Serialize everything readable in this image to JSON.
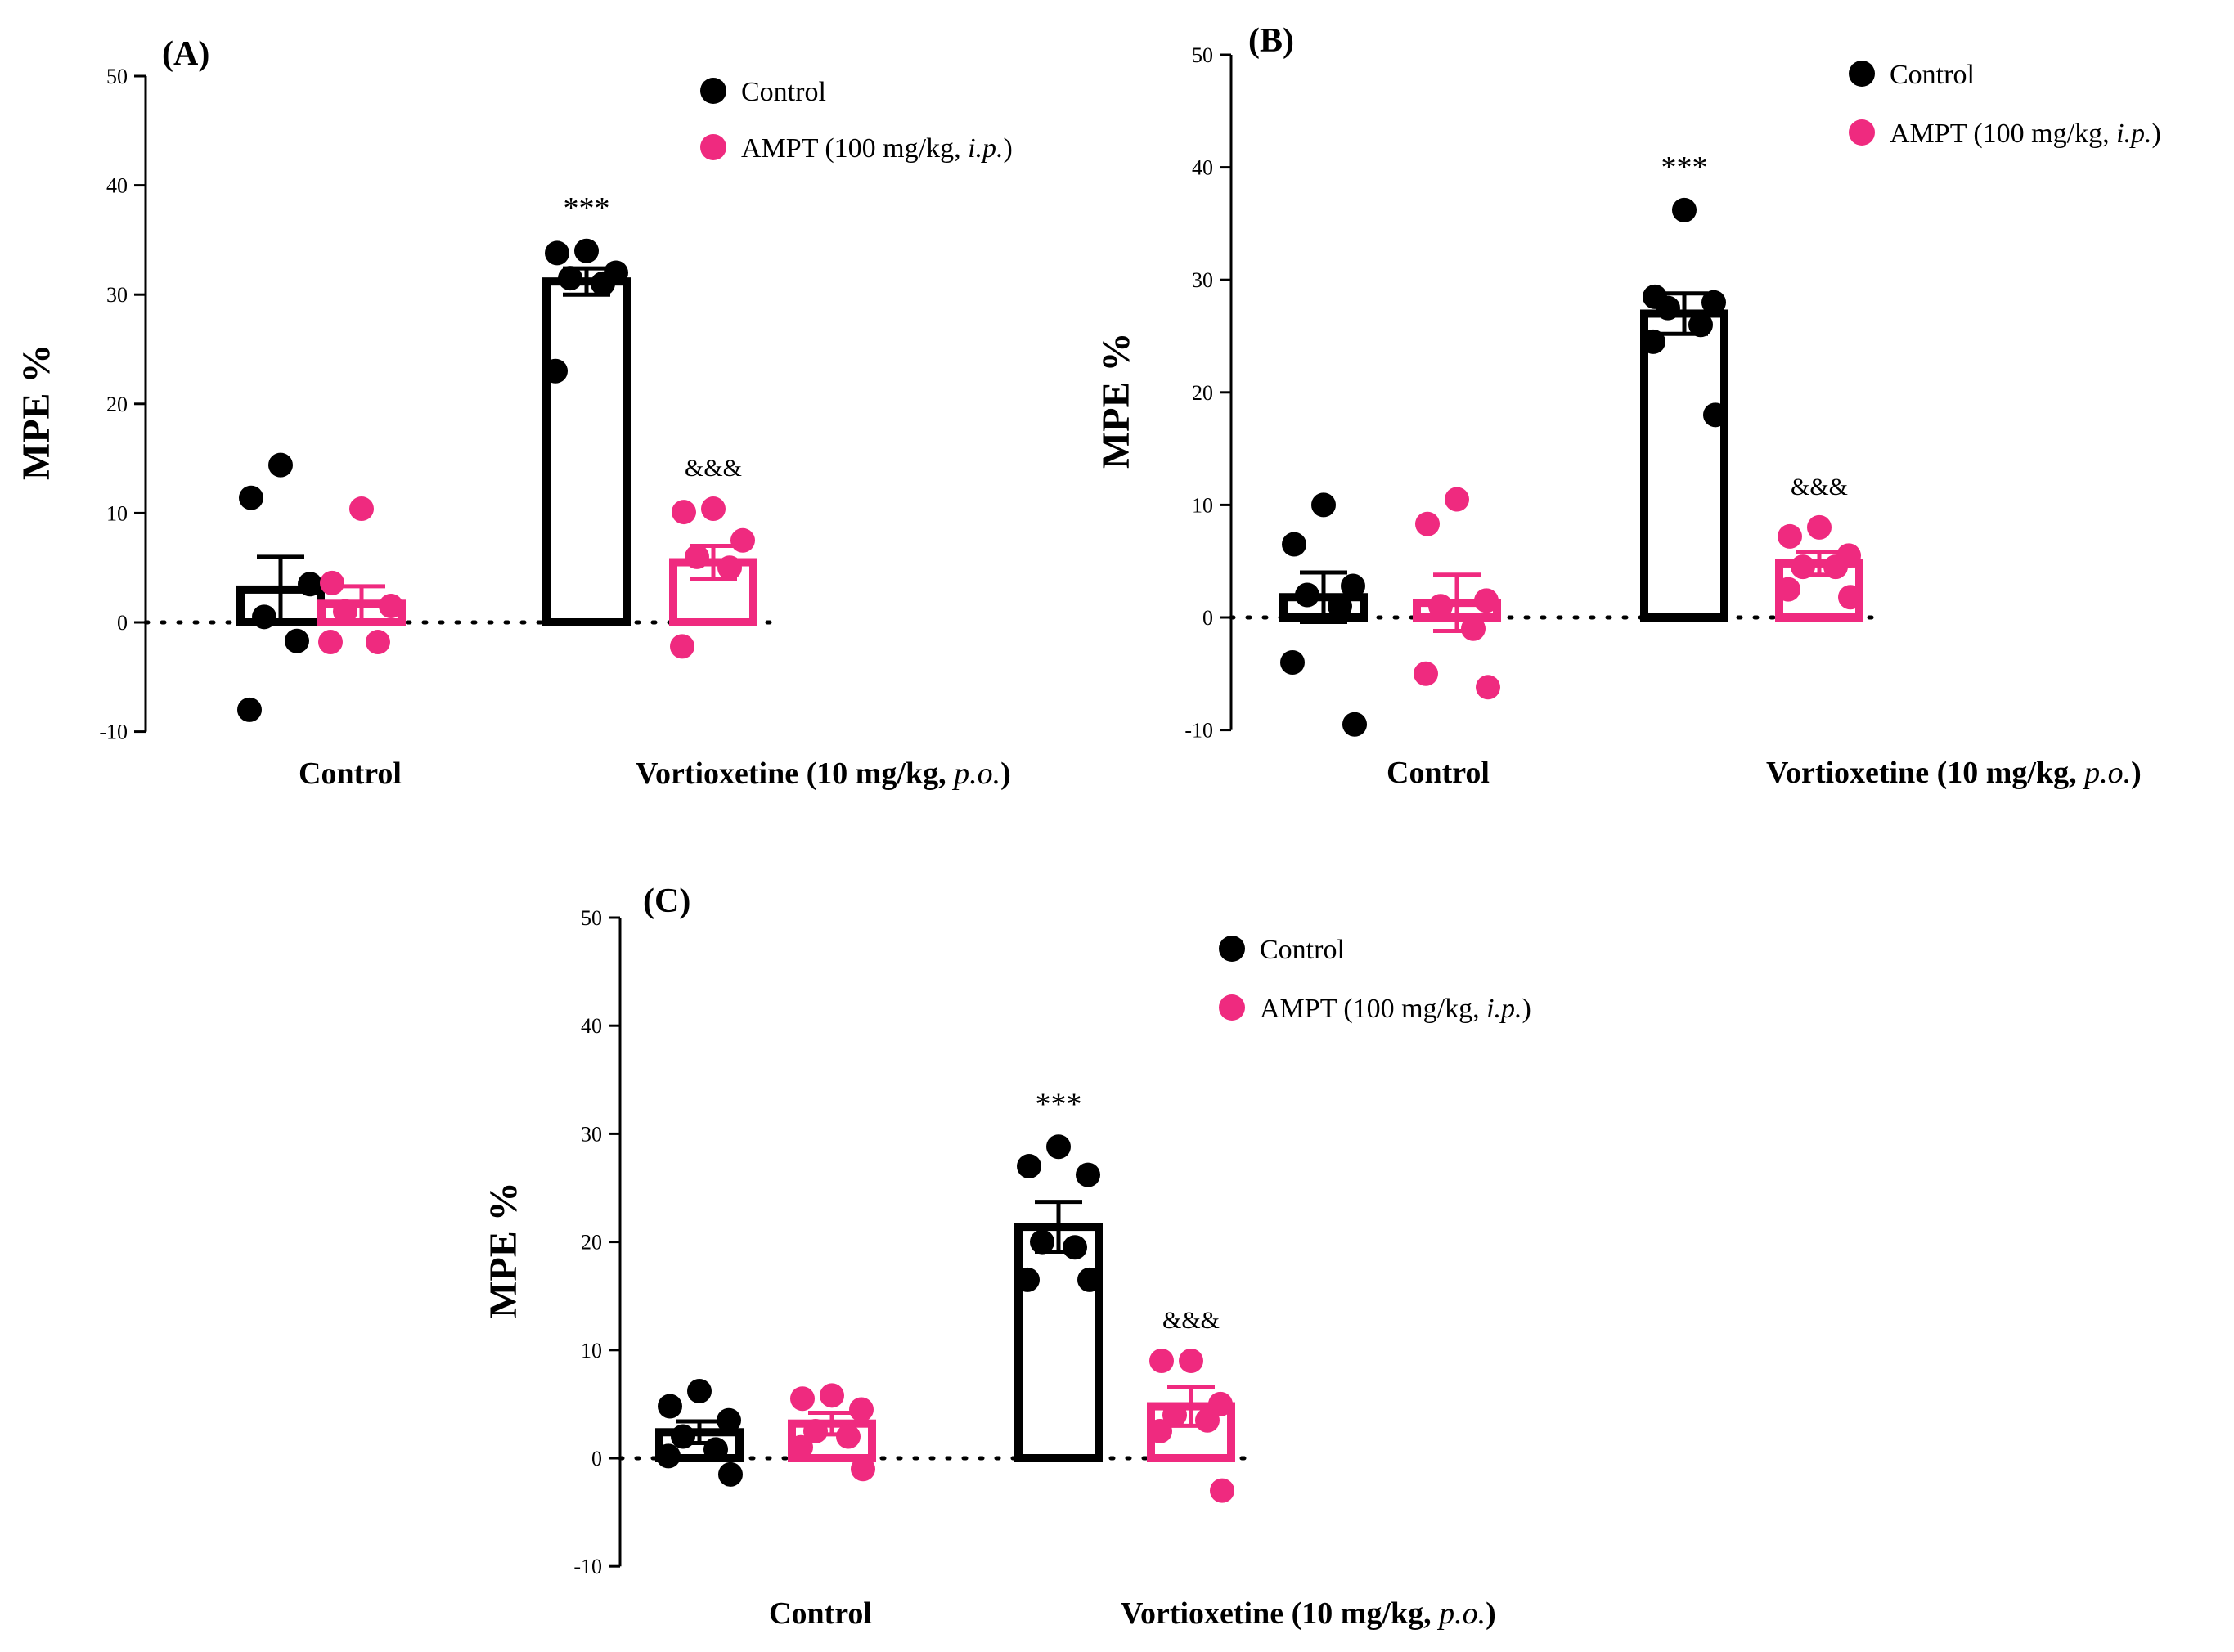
{
  "colors": {
    "control": "#000000",
    "ampt": "#ef2a7f",
    "axis": "#000000"
  },
  "chart_data": [
    {
      "panel": "A",
      "type": "bar",
      "title": "(A)",
      "xlabel": "",
      "ylabel": "MPE %",
      "ylim": [
        -10,
        50
      ],
      "yticks": [
        -10,
        0,
        10,
        20,
        30,
        40,
        50
      ],
      "legend": {
        "position": "top-right",
        "entries": [
          "Control",
          "AMPT (100 mg/kg, i.p.)"
        ]
      },
      "groups": [
        {
          "label_main": "Control",
          "label_italic": ""
        },
        {
          "label_main": "Vortioxetine (10 mg/kg, ",
          "label_italic": "p.o.",
          "label_tail": ")"
        }
      ],
      "series": [
        {
          "name": "Control",
          "mean": [
            3.0,
            31.2
          ],
          "sem": [
            3.0,
            1.2
          ],
          "points": [
            [
              14.4,
              11.4,
              3.5,
              0.5,
              -1.7,
              -8.0
            ],
            [
              34.0,
              33.8,
              32.0,
              31.5,
              31.0,
              23.0
            ]
          ],
          "annotations": [
            "",
            "***"
          ]
        },
        {
          "name": "AMPT (100 mg/kg, i.p.)",
          "mean": [
            1.7,
            5.5
          ],
          "sem": [
            1.6,
            1.5
          ],
          "points": [
            [
              10.4,
              3.6,
              1.5,
              1.0,
              -1.8,
              -1.8
            ],
            [
              10.4,
              10.1,
              7.5,
              6.0,
              5.0,
              -2.2
            ]
          ],
          "annotations": [
            "",
            "&&&"
          ]
        }
      ]
    },
    {
      "panel": "B",
      "type": "bar",
      "title": "(B)",
      "xlabel": "",
      "ylabel": "MPE %",
      "ylim": [
        -10,
        50
      ],
      "yticks": [
        -10,
        0,
        10,
        20,
        30,
        40,
        50
      ],
      "legend": {
        "position": "top-right",
        "entries": [
          "Control",
          "AMPT (100 mg/kg, i.p.)"
        ]
      },
      "groups": [
        {
          "label_main": "Control",
          "label_italic": ""
        },
        {
          "label_main": "Vortioxetine (10 mg/kg, ",
          "label_italic": "p.o.",
          "label_tail": ")"
        }
      ],
      "series": [
        {
          "name": "Control",
          "mean": [
            1.8,
            27.0
          ],
          "sem": [
            2.2,
            1.8
          ],
          "points": [
            [
              10.0,
              6.5,
              2.8,
              2.0,
              1.0,
              -4.0,
              -9.5
            ],
            [
              36.2,
              28.5,
              28.0,
              27.5,
              26.0,
              24.5,
              18.0
            ]
          ],
          "annotations": [
            "",
            "***"
          ]
        },
        {
          "name": "AMPT (100 mg/kg, i.p.)",
          "mean": [
            1.3,
            4.8
          ],
          "sem": [
            2.5,
            1.0
          ],
          "points": [
            [
              10.5,
              8.3,
              1.5,
              1.0,
              -1.0,
              -5.0,
              -6.2
            ],
            [
              8.0,
              7.2,
              5.5,
              4.5,
              4.5,
              2.5,
              1.8
            ]
          ],
          "annotations": [
            "",
            "&&&"
          ]
        }
      ]
    },
    {
      "panel": "C",
      "type": "bar",
      "title": "(C)",
      "xlabel": "",
      "ylabel": "MPE %",
      "ylim": [
        -10,
        50
      ],
      "yticks": [
        -10,
        0,
        10,
        20,
        30,
        40,
        50
      ],
      "legend": {
        "position": "top-right",
        "entries": [
          "Control",
          "AMPT (100 mg/kg, i.p.)"
        ]
      },
      "groups": [
        {
          "label_main": "Control",
          "label_italic": ""
        },
        {
          "label_main": "Vortioxetine (10 mg/kg, ",
          "label_italic": "p.o.",
          "label_tail": ")"
        }
      ],
      "series": [
        {
          "name": "Control",
          "mean": [
            2.4,
            21.4
          ],
          "sem": [
            1.0,
            2.3
          ],
          "points": [
            [
              6.2,
              4.8,
              3.5,
              2.0,
              0.8,
              0.2,
              -1.5
            ],
            [
              28.8,
              27.0,
              26.2,
              20.0,
              19.5,
              16.5,
              16.5
            ]
          ],
          "annotations": [
            "",
            "***"
          ]
        },
        {
          "name": "AMPT (100 mg/kg, i.p.)",
          "mean": [
            3.2,
            4.8
          ],
          "sem": [
            1.0,
            1.8
          ],
          "points": [
            [
              5.8,
              5.5,
              4.5,
              2.5,
              2.0,
              1.0,
              -1.0
            ],
            [
              9.0,
              9.0,
              5.0,
              4.0,
              3.5,
              2.5,
              -3.0
            ]
          ],
          "annotations": [
            "",
            "&&&"
          ]
        }
      ]
    }
  ]
}
